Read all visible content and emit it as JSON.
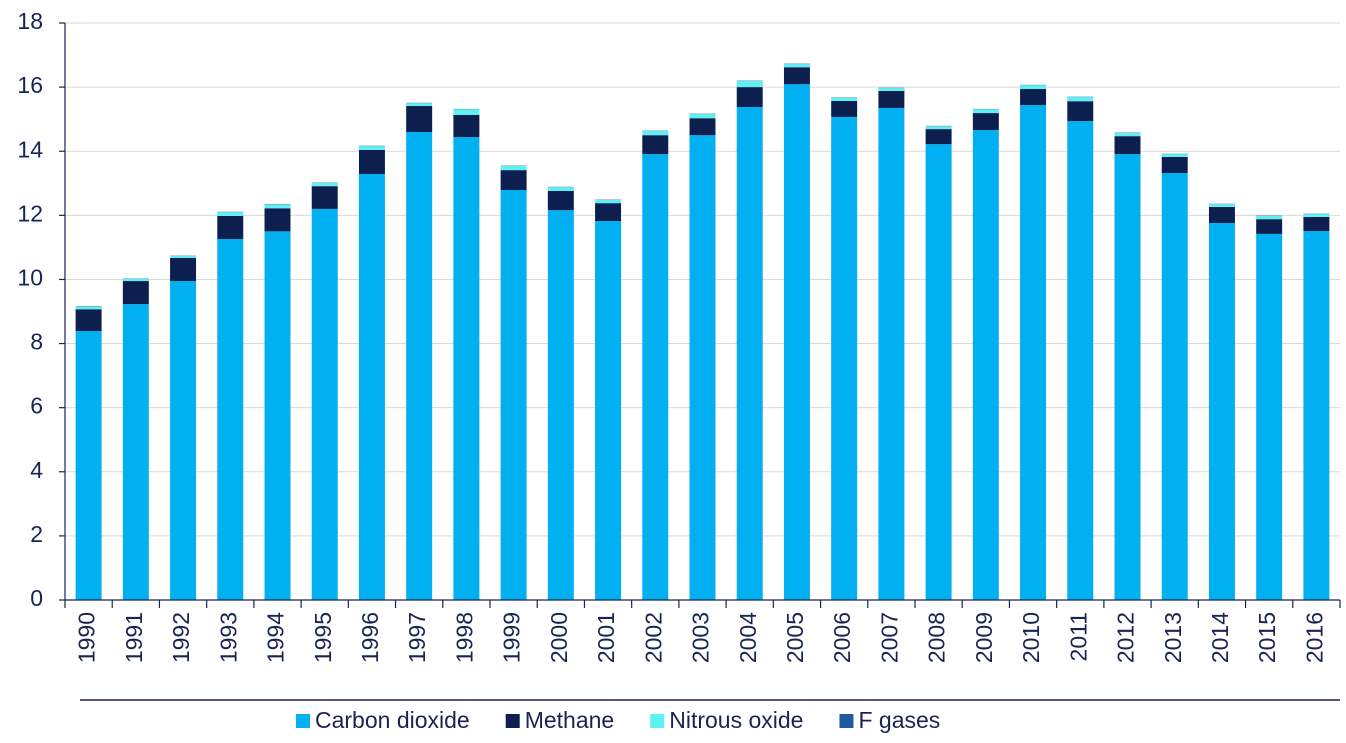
{
  "chart_data": {
    "type": "stacked_bar",
    "categories": [
      "1990",
      "1991",
      "1992",
      "1993",
      "1994",
      "1995",
      "1996",
      "1997",
      "1998",
      "1999",
      "2000",
      "2001",
      "2002",
      "2003",
      "2004",
      "2005",
      "2006",
      "2007",
      "2008",
      "2009",
      "2010",
      "2011",
      "2012",
      "2013",
      "2014",
      "2015",
      "2016"
    ],
    "series": [
      {
        "name": "Carbon dioxide",
        "color": "#00b0f0",
        "values": [
          8.39,
          9.23,
          9.95,
          11.26,
          11.5,
          12.2,
          13.29,
          14.6,
          14.44,
          12.79,
          12.16,
          11.82,
          13.91,
          14.5,
          15.38,
          16.09,
          15.07,
          15.35,
          14.22,
          14.66,
          15.44,
          14.94,
          13.91,
          13.32,
          11.76,
          11.42,
          11.51
        ]
      },
      {
        "name": "Methane",
        "color": "#0c1f4f",
        "values": [
          0.68,
          0.72,
          0.72,
          0.72,
          0.72,
          0.71,
          0.75,
          0.81,
          0.69,
          0.62,
          0.6,
          0.56,
          0.59,
          0.53,
          0.62,
          0.53,
          0.5,
          0.53,
          0.47,
          0.53,
          0.5,
          0.62,
          0.56,
          0.5,
          0.5,
          0.46,
          0.44
        ]
      },
      {
        "name": "Nitrous oxide",
        "color": "#5ff0f2",
        "values": [
          0.09,
          0.07,
          0.06,
          0.12,
          0.12,
          0.1,
          0.12,
          0.09,
          0.18,
          0.13,
          0.12,
          0.1,
          0.13,
          0.13,
          0.19,
          0.1,
          0.1,
          0.09,
          0.09,
          0.12,
          0.12,
          0.13,
          0.1,
          0.09,
          0.09,
          0.1,
          0.09
        ]
      },
      {
        "name": "F gases",
        "color": "#1f5a9e",
        "values": [
          0.01,
          0.01,
          0.01,
          0.01,
          0.01,
          0.01,
          0.01,
          0.01,
          0.01,
          0.01,
          0.01,
          0.01,
          0.01,
          0.01,
          0.01,
          0.01,
          0.01,
          0.01,
          0.01,
          0.01,
          0.01,
          0.01,
          0.01,
          0.01,
          0.01,
          0.01,
          0.01
        ]
      }
    ],
    "ylim": [
      0,
      18
    ],
    "yticks": [
      0,
      2,
      4,
      6,
      8,
      10,
      12,
      14,
      16,
      18
    ],
    "grid": true,
    "legend": "bottom"
  }
}
